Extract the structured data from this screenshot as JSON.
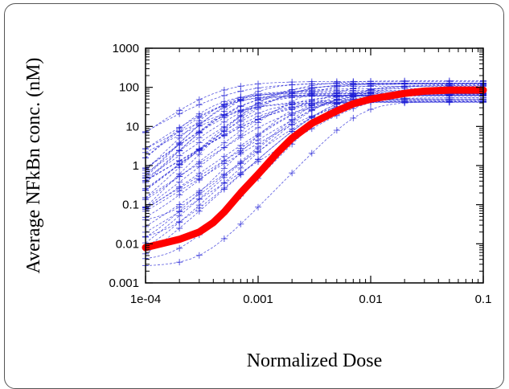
{
  "chart_data": {
    "type": "line",
    "title": "",
    "xlabel": "Normalized Dose",
    "ylabel": "Average NFkBn conc. (nM)",
    "x_scale": "log",
    "y_scale": "log",
    "xlim": [
      0.0001,
      0.1
    ],
    "ylim": [
      0.001,
      1000
    ],
    "x_ticks": [
      0.0001,
      0.001,
      0.01,
      0.1
    ],
    "x_tick_labels": [
      "1e-04",
      "0.001",
      "0.01",
      "0.1"
    ],
    "y_ticks": [
      0.001,
      0.01,
      0.1,
      1,
      10,
      100,
      1000
    ],
    "y_tick_labels": [
      "0.001",
      "0.01",
      "0.1",
      "1",
      "10",
      "100",
      "1000"
    ],
    "grid": false,
    "legend": "none",
    "colors": {
      "mean": "#ff0000",
      "individual": "#1f1fd6",
      "axis": "#000000",
      "frame": "#555555"
    },
    "mean_series": {
      "x": [
        0.0001,
        0.0002,
        0.0003,
        0.0004,
        0.0005,
        0.0007,
        0.001,
        0.0015,
        0.002,
        0.003,
        0.005,
        0.007,
        0.01,
        0.02,
        0.03,
        0.05,
        0.1
      ],
      "values": [
        0.008,
        0.013,
        0.02,
        0.035,
        0.065,
        0.2,
        0.6,
        2.2,
        5,
        12,
        25,
        38,
        50,
        70,
        80,
        85,
        85
      ]
    },
    "individual_series_summary": {
      "count": 40,
      "marker": "plus",
      "line_style": "dashed",
      "low_dose_range": [
        0.0015,
        0.04
      ],
      "high_dose_range": [
        40,
        150
      ],
      "midpoint_range": [
        0.0004,
        0.01
      ]
    }
  }
}
